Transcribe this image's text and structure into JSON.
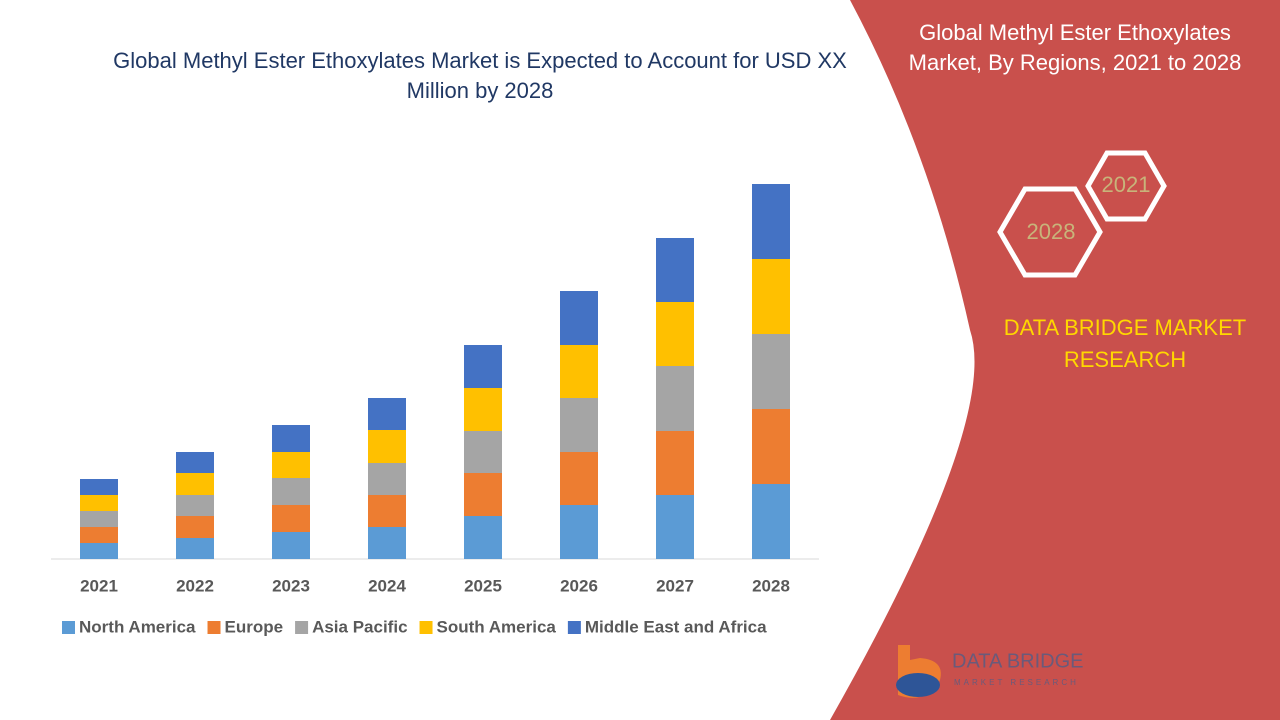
{
  "chart_data": {
    "type": "stacked_bar",
    "title": "Global Methyl Ester Ethoxylates Market is Expected to Account for USD XX Million by 2028",
    "categories": [
      "2021",
      "2022",
      "2023",
      "2024",
      "2025",
      "2026",
      "2027",
      "2028"
    ],
    "series": [
      {
        "name": "North America",
        "color": "#5b9bd5",
        "values": [
          16,
          21,
          27,
          32,
          43,
          54,
          64,
          75
        ]
      },
      {
        "name": "Europe",
        "color": "#ed7d31",
        "values": [
          16,
          22,
          27,
          32,
          43,
          53,
          64,
          75
        ]
      },
      {
        "name": "Asia Pacific",
        "color": "#a5a5a5",
        "values": [
          16,
          21,
          27,
          32,
          42,
          54,
          65,
          75
        ]
      },
      {
        "name": "South America",
        "color": "#ffc000",
        "values": [
          16,
          22,
          26,
          33,
          43,
          53,
          64,
          75
        ]
      },
      {
        "name": "Middle East and Africa",
        "color": "#4472c4",
        "values": [
          16,
          21,
          27,
          32,
          43,
          54,
          64,
          75
        ]
      }
    ],
    "ylim": [
      0,
      400
    ]
  },
  "side_panel": {
    "title": "Global Methyl Ester Ethoxylates Market, By Regions, 2021 to 2028",
    "hex_labels": [
      "2021",
      "2028"
    ],
    "brand": "DATA BRIDGE MARKET RESEARCH"
  },
  "logo": {
    "name": "DATA BRIDGE",
    "tagline": "MARKET RESEARCH"
  }
}
